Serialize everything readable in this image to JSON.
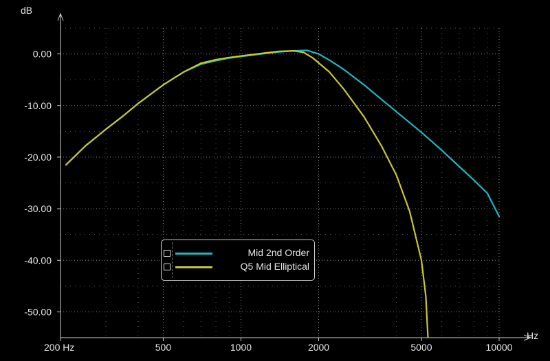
{
  "chart_data": {
    "type": "line",
    "title": "",
    "xlabel": "Hz",
    "ylabel": "dB",
    "x_scale": "log",
    "xlim": [
      200,
      10000
    ],
    "ylim": [
      -55,
      5
    ],
    "grid": true,
    "legend_position": "lower-left",
    "y_ticks": [
      {
        "value": 0,
        "label": "0.00"
      },
      {
        "value": -10,
        "label": "-10.00"
      },
      {
        "value": -20,
        "label": "-20.00"
      },
      {
        "value": -30,
        "label": "-30.00"
      },
      {
        "value": -40,
        "label": "-40.00"
      },
      {
        "value": -50,
        "label": "-50.00"
      }
    ],
    "x_ticks": [
      {
        "value": 200,
        "label": "200 Hz"
      },
      {
        "value": 500,
        "label": "500"
      },
      {
        "value": 1000,
        "label": "1000"
      },
      {
        "value": 2000,
        "label": "2000"
      },
      {
        "value": 5000,
        "label": "5000"
      },
      {
        "value": 10000,
        "label": "10000"
      }
    ],
    "series": [
      {
        "name": "Mid 2nd Order",
        "color": "#1fb8c0",
        "points": [
          [
            210,
            -21.5
          ],
          [
            250,
            -17.8
          ],
          [
            300,
            -14.6
          ],
          [
            350,
            -12.0
          ],
          [
            400,
            -9.6
          ],
          [
            500,
            -6.0
          ],
          [
            600,
            -3.5
          ],
          [
            700,
            -2.0
          ],
          [
            800,
            -1.3
          ],
          [
            900,
            -0.8
          ],
          [
            1000,
            -0.5
          ],
          [
            1200,
            0.0
          ],
          [
            1400,
            0.4
          ],
          [
            1600,
            0.6
          ],
          [
            1800,
            0.7
          ],
          [
            2000,
            0.0
          ],
          [
            2200,
            -1.2
          ],
          [
            2500,
            -3.0
          ],
          [
            3000,
            -6.0
          ],
          [
            3500,
            -8.8
          ],
          [
            4000,
            -11.2
          ],
          [
            5000,
            -15.2
          ],
          [
            6000,
            -18.7
          ],
          [
            7000,
            -21.8
          ],
          [
            8000,
            -24.5
          ],
          [
            9000,
            -27.0
          ],
          [
            10000,
            -31.5
          ]
        ]
      },
      {
        "name": "Q5 Mid Elliptical",
        "color": "#c8c830",
        "points": [
          [
            210,
            -21.5
          ],
          [
            250,
            -17.8
          ],
          [
            300,
            -14.6
          ],
          [
            350,
            -12.0
          ],
          [
            400,
            -9.6
          ],
          [
            500,
            -6.0
          ],
          [
            600,
            -3.5
          ],
          [
            700,
            -1.8
          ],
          [
            800,
            -1.1
          ],
          [
            900,
            -0.7
          ],
          [
            1000,
            -0.4
          ],
          [
            1200,
            0.1
          ],
          [
            1400,
            0.5
          ],
          [
            1600,
            0.6
          ],
          [
            1750,
            0.3
          ],
          [
            1900,
            -0.8
          ],
          [
            2200,
            -3.5
          ],
          [
            2500,
            -6.8
          ],
          [
            3000,
            -12.2
          ],
          [
            3500,
            -17.8
          ],
          [
            4000,
            -23.5
          ],
          [
            4500,
            -30.5
          ],
          [
            5000,
            -40.0
          ],
          [
            5200,
            -47.0
          ],
          [
            5300,
            -55.0
          ]
        ]
      }
    ]
  }
}
